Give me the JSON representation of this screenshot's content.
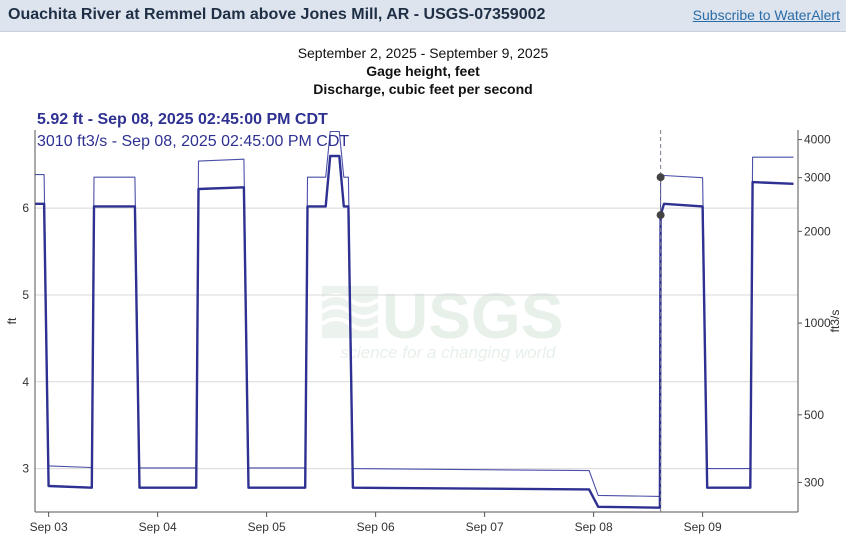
{
  "header": {
    "title": "Ouachita River at Remmel Dam above Jones Mill, AR - USGS-07359002",
    "subscribe_label": "Subscribe to WaterAlert"
  },
  "chart_header": {
    "date_range": "September 2, 2025 - September 9, 2025",
    "line1": "Gage height, feet",
    "line2": "Discharge, cubic feet per second"
  },
  "readout": {
    "gage": "5.92 ft - Sep 08, 2025 02:45:00 PM CDT",
    "discharge": "3010 ft3/s - Sep 08, 2025 02:45:00 PM CDT"
  },
  "watermark": {
    "logo": "USGS",
    "tagline": "science for a changing world"
  },
  "colors": {
    "gage": "#2e3192",
    "discharge": "#4a4fa8",
    "grid": "#d8d8d8",
    "cursor": "#7a7a8a",
    "header_bg": "#dde4ee"
  },
  "chart_data": {
    "type": "line",
    "x_ticks": [
      "Sep 03",
      "Sep 04",
      "Sep 05",
      "Sep 06",
      "Sep 07",
      "Sep 08",
      "Sep 09"
    ],
    "xlim": [
      "2025-09-02 21:00",
      "2025-09-09 21:00"
    ],
    "y_left": {
      "label": "ft",
      "ticks": [
        "3",
        "4",
        "5",
        "6"
      ],
      "scale": "linear",
      "ylim": [
        2.5,
        6.9
      ]
    },
    "y_right": {
      "label": "ft3/s",
      "ticks": [
        "300",
        "500",
        "1000",
        "2000",
        "3000",
        "4000"
      ],
      "scale": "log",
      "ylim": [
        240,
        4300
      ]
    },
    "grid": true,
    "cursor": {
      "time": "2025-09-08 14:45",
      "gage": 5.92,
      "discharge": 3010
    },
    "series": [
      {
        "axis": "left",
        "points": [
          [
            "2025-09-02 21:00",
            6.05
          ],
          [
            "2025-09-02 23:00",
            6.05
          ],
          [
            "2025-09-03 00:00",
            2.8
          ],
          [
            "2025-09-03 09:30",
            2.78
          ],
          [
            "2025-09-03 10:00",
            6.02
          ],
          [
            "2025-09-03 19:00",
            6.02
          ],
          [
            "2025-09-03 20:00",
            2.78
          ],
          [
            "2025-09-04 08:30",
            2.78
          ],
          [
            "2025-09-04 09:00",
            6.22
          ],
          [
            "2025-09-04 19:00",
            6.24
          ],
          [
            "2025-09-04 20:00",
            2.78
          ],
          [
            "2025-09-05 08:30",
            2.78
          ],
          [
            "2025-09-05 09:00",
            6.02
          ],
          [
            "2025-09-05 13:00",
            6.02
          ],
          [
            "2025-09-05 14:00",
            6.6
          ],
          [
            "2025-09-05 16:00",
            6.6
          ],
          [
            "2025-09-05 17:00",
            6.02
          ],
          [
            "2025-09-05 18:00",
            6.02
          ],
          [
            "2025-09-05 19:00",
            2.78
          ],
          [
            "2025-09-07 23:00",
            2.76
          ],
          [
            "2025-09-08 01:00",
            2.56
          ],
          [
            "2025-09-08 14:35",
            2.55
          ],
          [
            "2025-09-08 14:45",
            5.92
          ],
          [
            "2025-09-08 15:30",
            6.05
          ],
          [
            "2025-09-09 00:00",
            6.02
          ],
          [
            "2025-09-09 01:00",
            2.78
          ],
          [
            "2025-09-09 10:30",
            2.78
          ],
          [
            "2025-09-09 11:00",
            6.3
          ],
          [
            "2025-09-09 20:00",
            6.28
          ]
        ]
      },
      {
        "axis": "right",
        "points": [
          [
            "2025-09-02 21:00",
            3070
          ],
          [
            "2025-09-02 23:00",
            3070
          ],
          [
            "2025-09-03 00:00",
            340
          ],
          [
            "2025-09-03 09:30",
            336
          ],
          [
            "2025-09-03 10:00",
            3010
          ],
          [
            "2025-09-03 19:00",
            3010
          ],
          [
            "2025-09-03 20:00",
            335
          ],
          [
            "2025-09-04 08:30",
            335
          ],
          [
            "2025-09-04 09:00",
            3400
          ],
          [
            "2025-09-04 19:00",
            3450
          ],
          [
            "2025-09-04 20:00",
            335
          ],
          [
            "2025-09-05 08:30",
            335
          ],
          [
            "2025-09-05 09:00",
            3010
          ],
          [
            "2025-09-05 13:00",
            3010
          ],
          [
            "2025-09-05 14:00",
            4250
          ],
          [
            "2025-09-05 16:00",
            4250
          ],
          [
            "2025-09-05 17:00",
            3010
          ],
          [
            "2025-09-05 18:00",
            3010
          ],
          [
            "2025-09-05 19:00",
            333
          ],
          [
            "2025-09-07 23:00",
            328
          ],
          [
            "2025-09-08 01:00",
            272
          ],
          [
            "2025-09-08 14:35",
            270
          ],
          [
            "2025-09-08 14:45",
            3010
          ],
          [
            "2025-09-08 15:30",
            3050
          ],
          [
            "2025-09-09 00:00",
            3000
          ],
          [
            "2025-09-09 01:00",
            333
          ],
          [
            "2025-09-09 10:30",
            333
          ],
          [
            "2025-09-09 11:00",
            3500
          ],
          [
            "2025-09-09 20:00",
            3500
          ]
        ]
      }
    ]
  }
}
